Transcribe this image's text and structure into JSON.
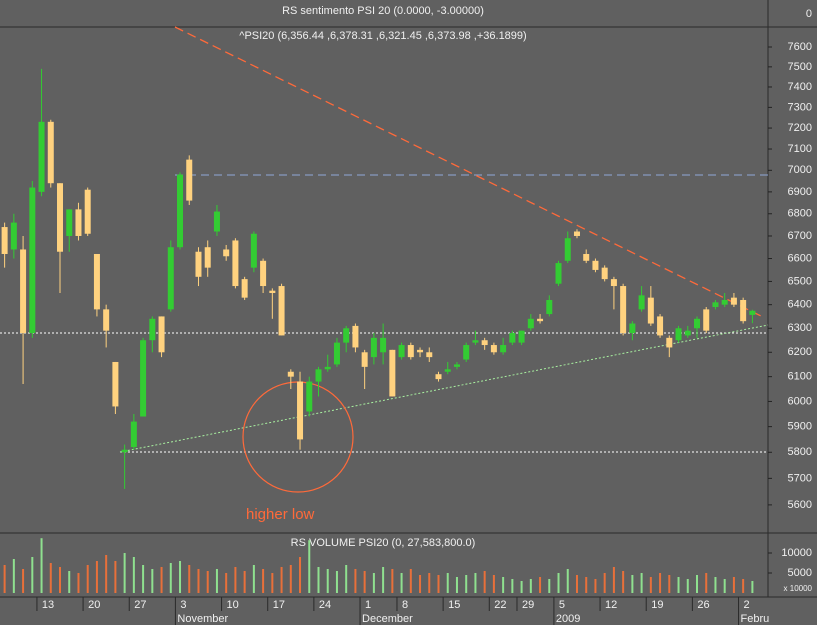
{
  "chart_data": [
    {
      "type": "indicator",
      "title": "RS sentimento PSI 20 (0.0000, -3.00000)",
      "yticks": [
        0
      ]
    },
    {
      "type": "candlestick",
      "title": "^PSI20 (6,356.44 ,6,378.31 ,6,321.45 ,6,373.98 ,+36.1899)",
      "annotation": "higher low",
      "categories": [
        null,
        null,
        null,
        null,
        "13",
        null,
        null,
        null,
        null,
        "20",
        null,
        null,
        null,
        null,
        "27",
        null,
        null,
        null,
        null,
        "3",
        null,
        null,
        null,
        null,
        "10",
        null,
        null,
        null,
        null,
        "17",
        null,
        null,
        null,
        null,
        "24",
        null,
        null,
        null,
        null,
        "1",
        null,
        null,
        null,
        "8",
        null,
        null,
        null,
        null,
        "15",
        null,
        null,
        null,
        null,
        "22",
        null,
        null,
        "29",
        null,
        null,
        null,
        "5",
        null,
        null,
        null,
        null,
        "12",
        null,
        null,
        null,
        null,
        "19",
        null,
        null,
        null,
        null,
        "26",
        null,
        null,
        null,
        null,
        "2",
        null
      ],
      "months": [
        null,
        null,
        null,
        null,
        null,
        null,
        null,
        null,
        null,
        null,
        null,
        null,
        null,
        null,
        null,
        null,
        null,
        null,
        null,
        "November",
        null,
        null,
        null,
        null,
        null,
        null,
        null,
        null,
        null,
        null,
        null,
        null,
        null,
        null,
        null,
        null,
        null,
        null,
        null,
        "December",
        null,
        null,
        null,
        null,
        null,
        null,
        null,
        null,
        null,
        null,
        null,
        null,
        null,
        null,
        null,
        null,
        null,
        null,
        null,
        null,
        "2009",
        null,
        null,
        null,
        null,
        null,
        null,
        null,
        null,
        null,
        null,
        null,
        null,
        null,
        null,
        null,
        null,
        null,
        null,
        null,
        "Febru",
        null
      ],
      "open": [
        6740,
        6640,
        6640,
        6280,
        6900,
        7230,
        6940,
        6700,
        6820,
        6910,
        6620,
        6380,
        6160,
        5800,
        5820,
        5940,
        6250,
        6350,
        6380,
        6650,
        7050,
        6630,
        6650,
        6720,
        6640,
        6680,
        6510,
        6560,
        6590,
        6460,
        6480,
        6120,
        6080,
        5960,
        6080,
        6130,
        6150,
        6240,
        6310,
        6200,
        6180,
        6200,
        6210,
        6180,
        6230,
        6210,
        6200,
        6110,
        6120,
        6140,
        6170,
        6240,
        6250,
        6230,
        6200,
        6240,
        6240,
        6300,
        6340,
        6360,
        6490,
        6590,
        6720,
        6620,
        6590,
        6560,
        6510,
        6480,
        6280,
        6380,
        6430,
        6350,
        6260,
        6250,
        6270,
        6300,
        6380,
        6390,
        6400,
        6430,
        6420,
        6356.44
      ],
      "high": [
        6760,
        6800,
        6700,
        6950,
        7490,
        7240,
        6940,
        6820,
        6850,
        6920,
        6620,
        6400,
        6160,
        5830,
        5950,
        6260,
        6350,
        6350,
        6680,
        6990,
        7070,
        6650,
        6680,
        6840,
        6660,
        6690,
        6520,
        6720,
        6600,
        6470,
        6490,
        6130,
        6120,
        6100,
        6140,
        6190,
        6260,
        6310,
        6320,
        6210,
        6280,
        6320,
        6210,
        6240,
        6240,
        6220,
        6220,
        6120,
        6160,
        6160,
        6240,
        6290,
        6260,
        6240,
        6260,
        6290,
        6290,
        6360,
        6360,
        6440,
        6590,
        6720,
        6730,
        6640,
        6600,
        6570,
        6520,
        6490,
        6330,
        6480,
        6480,
        6360,
        6270,
        6310,
        6310,
        6350,
        6390,
        6420,
        6450,
        6450,
        6430,
        6378.31
      ],
      "low": [
        6560,
        6600,
        6070,
        6260,
        6880,
        6920,
        6450,
        6630,
        6680,
        6700,
        6350,
        6220,
        5950,
        5660,
        5810,
        5940,
        6200,
        6180,
        6370,
        6640,
        6840,
        6480,
        6520,
        6700,
        6590,
        6470,
        6420,
        6540,
        6450,
        6340,
        6270,
        6050,
        5810,
        5940,
        6020,
        6120,
        6140,
        6200,
        6200,
        6050,
        6150,
        6150,
        6020,
        6170,
        6170,
        6180,
        6160,
        6080,
        6110,
        6130,
        6160,
        6230,
        6210,
        6190,
        6190,
        6230,
        6230,
        6290,
        6320,
        6350,
        6480,
        6580,
        6690,
        6580,
        6540,
        6500,
        6380,
        6270,
        6250,
        6370,
        6310,
        6260,
        6180,
        6240,
        6260,
        6260,
        6280,
        6380,
        6390,
        6390,
        6320,
        6321.45
      ],
      "close": [
        6620,
        6760,
        6280,
        6920,
        7230,
        6940,
        6630,
        6820,
        6700,
        6710,
        6380,
        6290,
        5980,
        5810,
        5920,
        6250,
        6340,
        6200,
        6650,
        6980,
        6860,
        6520,
        6560,
        6810,
        6610,
        6480,
        6430,
        6710,
        6480,
        6450,
        6270,
        6100,
        5850,
        6080,
        6130,
        6140,
        6240,
        6300,
        6220,
        6140,
        6260,
        6260,
        6020,
        6230,
        6180,
        6200,
        6180,
        6090,
        6130,
        6150,
        6230,
        6250,
        6230,
        6200,
        6230,
        6280,
        6290,
        6340,
        6330,
        6420,
        6580,
        6690,
        6700,
        6590,
        6550,
        6510,
        6480,
        6280,
        6320,
        6440,
        6320,
        6270,
        6220,
        6300,
        6290,
        6340,
        6290,
        6410,
        6420,
        6400,
        6330,
        6373.98
      ],
      "ylim": [
        5496,
        7702
      ],
      "log_scale": true,
      "yticks": [
        7600,
        7500,
        7400,
        7300,
        7200,
        7100,
        7000,
        6900,
        6800,
        6700,
        6600,
        6500,
        6400,
        6300,
        6200,
        6100,
        6000,
        5900,
        5800,
        5700,
        5600
      ],
      "up_color": "#33cc33",
      "down_color": "#ffd27f"
    },
    {
      "type": "bar",
      "title": "RS VOLUME PSI20 (0, 27,583,800.0)",
      "axis_note": "x 10000",
      "values": [
        7000,
        8500,
        6000,
        9000,
        13700,
        7500,
        6500,
        5500,
        5000,
        7000,
        8000,
        9500,
        8000,
        10000,
        9000,
        7000,
        6000,
        6500,
        7500,
        8000,
        7000,
        6000,
        5500,
        6000,
        5000,
        6500,
        5500,
        7000,
        6000,
        5000,
        6500,
        7000,
        9000,
        13200,
        6500,
        6000,
        5500,
        7000,
        6000,
        5500,
        5000,
        6500,
        6000,
        5000,
        6000,
        4500,
        5000,
        4500,
        5000,
        4000,
        4500,
        5000,
        5500,
        4500,
        4000,
        3500,
        3000,
        3500,
        4000,
        3500,
        5000,
        6000,
        4500,
        4000,
        3500,
        5000,
        6500,
        5500,
        4500,
        5000,
        4000,
        5000,
        4500,
        4000,
        3500,
        4500,
        5000,
        4000,
        3500,
        4000,
        3500,
        3000
      ],
      "ylim": [
        0,
        15000
      ],
      "yticks": [
        10000,
        5000
      ],
      "up_color": "#8fe08f",
      "down_color": "#e8703a"
    }
  ]
}
